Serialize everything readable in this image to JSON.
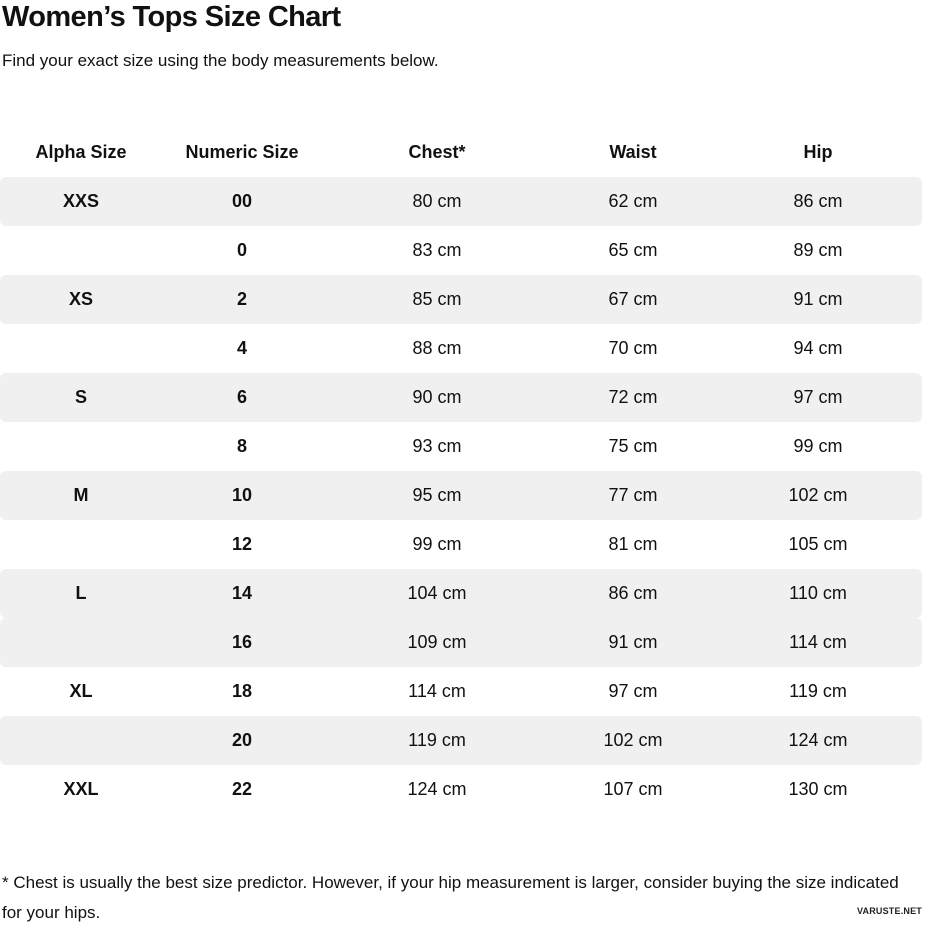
{
  "page": {
    "title": "Women’s Tops Size Chart",
    "subtitle": "Find your exact size using the body measurements below.",
    "footnote": "* Chest is usually the best size predictor. However, if your hip measurement is larger, consider buying the size indicated for your hips.",
    "watermark": "VARUSTE.NET"
  },
  "colors": {
    "row_shade": "#f0f0f0",
    "text": "#111111",
    "background": "#ffffff"
  },
  "chart_data": {
    "type": "table",
    "title": "Women’s Tops Size Chart",
    "columns": [
      "Alpha Size",
      "Numeric Size",
      "Chest*",
      "Waist",
      "Hip"
    ],
    "rows": [
      {
        "alpha": "XXS",
        "numeric": "00",
        "chest": "80 cm",
        "waist": "62 cm",
        "hip": "86 cm",
        "shaded": true
      },
      {
        "alpha": "",
        "numeric": "0",
        "chest": "83 cm",
        "waist": "65 cm",
        "hip": "89 cm",
        "shaded": false
      },
      {
        "alpha": "XS",
        "numeric": "2",
        "chest": "85 cm",
        "waist": "67 cm",
        "hip": "91 cm",
        "shaded": true
      },
      {
        "alpha": "",
        "numeric": "4",
        "chest": "88 cm",
        "waist": "70 cm",
        "hip": "94 cm",
        "shaded": false
      },
      {
        "alpha": "S",
        "numeric": "6",
        "chest": "90 cm",
        "waist": "72 cm",
        "hip": "97 cm",
        "shaded": true
      },
      {
        "alpha": "",
        "numeric": "8",
        "chest": "93 cm",
        "waist": "75 cm",
        "hip": "99 cm",
        "shaded": false
      },
      {
        "alpha": "M",
        "numeric": "10",
        "chest": "95 cm",
        "waist": "77 cm",
        "hip": "102 cm",
        "shaded": true
      },
      {
        "alpha": "",
        "numeric": "12",
        "chest": "99 cm",
        "waist": "81 cm",
        "hip": "105 cm",
        "shaded": false
      },
      {
        "alpha": "L",
        "numeric": "14",
        "chest": "104 cm",
        "waist": "86 cm",
        "hip": "110 cm",
        "shaded": true
      },
      {
        "alpha": "",
        "numeric": "16",
        "chest": "109 cm",
        "waist": "91 cm",
        "hip": "114 cm",
        "shaded": true
      },
      {
        "alpha": "XL",
        "numeric": "18",
        "chest": "114 cm",
        "waist": "97 cm",
        "hip": "119 cm",
        "shaded": false
      },
      {
        "alpha": "",
        "numeric": "20",
        "chest": "119 cm",
        "waist": "102 cm",
        "hip": "124 cm",
        "shaded": true
      },
      {
        "alpha": "XXL",
        "numeric": "22",
        "chest": "124 cm",
        "waist": "107 cm",
        "hip": "130 cm",
        "shaded": false
      }
    ]
  }
}
